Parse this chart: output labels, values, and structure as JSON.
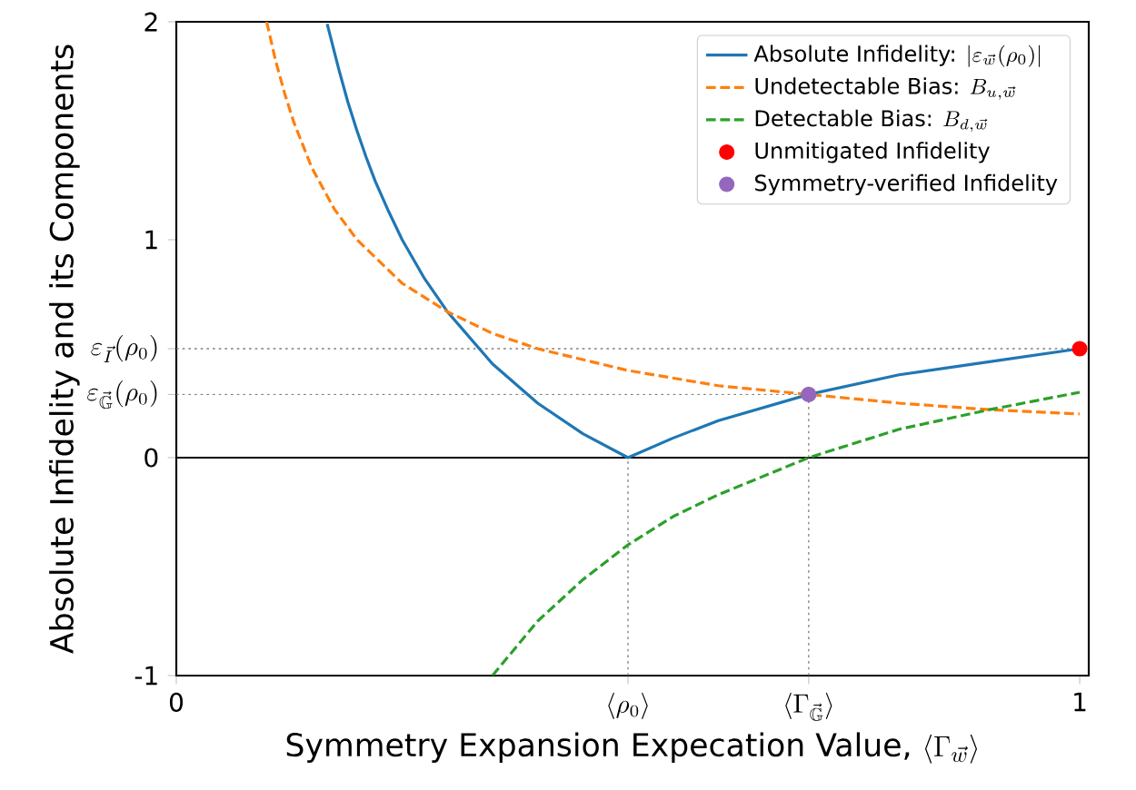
{
  "chart_data": {
    "type": "line",
    "xlabel": "\\text{Symmetry Expansion Expecation Value, }\\langle\\Gamma_{\\vec{w}}\\rangle",
    "ylabel": "Absolute Infidelity and its Components",
    "xlim": [
      0,
      1.01
    ],
    "ylim": [
      -1,
      2
    ],
    "xticks": [
      0,
      {
        "value": 0.5,
        "label": "\\langle\\rho_0\\rangle"
      },
      {
        "value": 0.7,
        "label": "\\langle\\Gamma_{\\vec{\\mathbb{G}}}\\rangle"
      },
      1
    ],
    "yticks": [
      {
        "value": -1,
        "label": "\\text{-1}"
      },
      0,
      {
        "value": 0.29,
        "label": "\\varepsilon_{\\vec{\\mathbb{G}}}(\\rho_0)"
      },
      {
        "value": 0.5,
        "label": "\\varepsilon_{\\vec{I}}(\\rho_0)"
      },
      1,
      2
    ],
    "legend": "top right",
    "series": [
      {
        "name": "\\text{Absolute Infidelity: }|\\varepsilon_{\\vec{w}}(\\rho_0)|",
        "color": "#1f77b4",
        "line_style": "solid",
        "x": [
          0.167,
          0.18,
          0.19,
          0.2,
          0.21,
          0.22,
          0.235,
          0.25,
          0.275,
          0.3,
          0.35,
          0.4,
          0.45,
          0.5,
          0.55,
          0.6,
          0.7,
          0.8,
          0.9,
          1.0
        ],
        "values": [
          1.99,
          1.78,
          1.63,
          1.5,
          1.38,
          1.27,
          1.13,
          1.0,
          0.82,
          0.67,
          0.43,
          0.25,
          0.11,
          0,
          0.09,
          0.17,
          0.29,
          0.38,
          0.44,
          0.5
        ]
      },
      {
        "name": "\\text{Undetectable Bias: }B_{u,\\vec{w}}",
        "color": "#ff7f0e",
        "line_style": "dashed",
        "x": [
          0.1,
          0.11,
          0.12,
          0.13,
          0.15,
          0.175,
          0.2,
          0.25,
          0.3,
          0.35,
          0.4,
          0.5,
          0.6,
          0.7,
          0.8,
          0.9,
          1.0
        ],
        "values": [
          2.0,
          1.82,
          1.67,
          1.54,
          1.33,
          1.14,
          1.0,
          0.8,
          0.67,
          0.57,
          0.5,
          0.4,
          0.33,
          0.29,
          0.25,
          0.22,
          0.2
        ]
      },
      {
        "name": "\\text{Detectable Bias: }B_{d,\\vec{w}}",
        "color": "#2ca02c",
        "line_style": "dashed",
        "x": [
          0.35,
          0.4,
          0.45,
          0.5,
          0.55,
          0.6,
          0.7,
          0.8,
          0.9,
          1.0
        ],
        "values": [
          -1.0,
          -0.75,
          -0.56,
          -0.4,
          -0.27,
          -0.17,
          0,
          0.13,
          0.22,
          0.3
        ]
      },
      {
        "name": "Unmitigated Infidelity",
        "type": "scatter",
        "color": "#ff0000",
        "x": [
          1.0
        ],
        "values": [
          0.5
        ]
      },
      {
        "name": "Symmetry-verified Infidelity",
        "type": "scatter",
        "color": "#9467bd",
        "x": [
          0.7
        ],
        "values": [
          0.29
        ]
      }
    ],
    "ref_lines": [
      {
        "axis": "y",
        "value": 0,
        "color": "#000000",
        "line_style": "solid"
      },
      {
        "axis": "y",
        "value": 0.5,
        "color": "#808080",
        "line_style": "dotted"
      },
      {
        "axis": "y",
        "value": 0.29,
        "color": "#808080",
        "line_style": "dotted"
      },
      {
        "axis": "x",
        "value": 0.5,
        "color": "#808080",
        "line_style": "dotted"
      },
      {
        "axis": "x",
        "value": 0.7,
        "color": "#808080",
        "line_style": "dotted"
      }
    ]
  }
}
